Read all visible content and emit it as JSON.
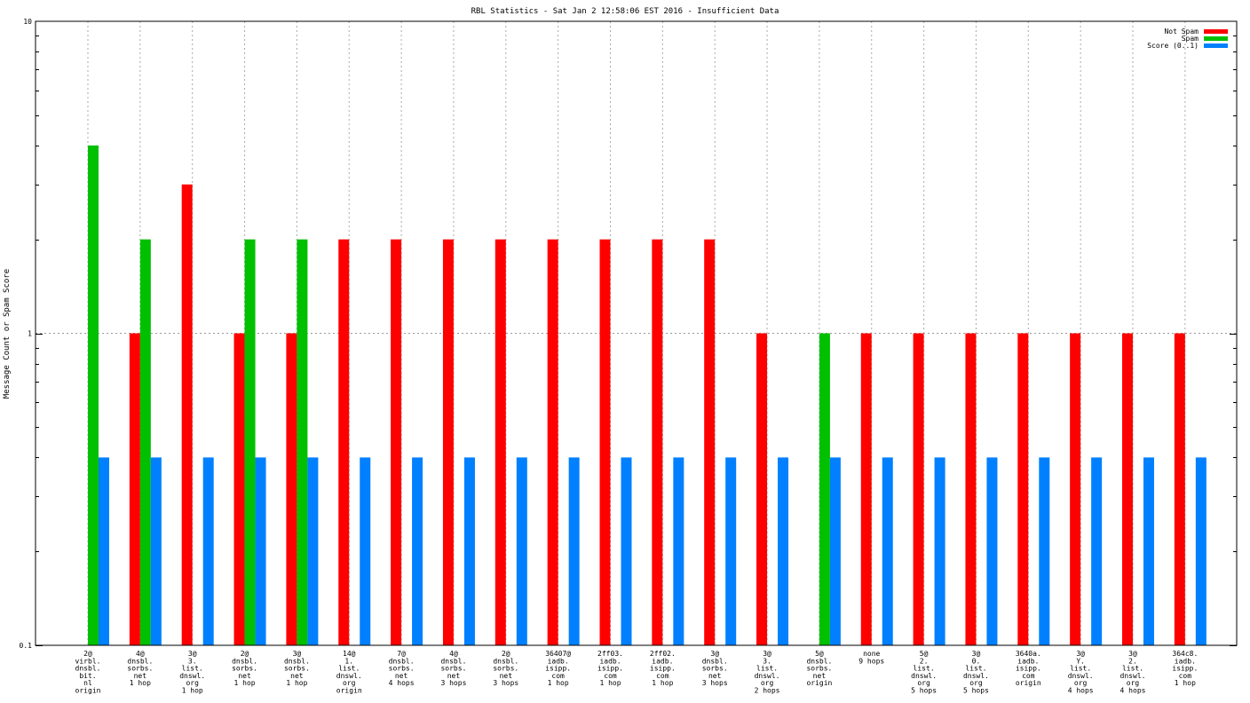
{
  "chart_data": {
    "type": "bar",
    "title": "RBL Statistics - Sat Jan  2 12:58:06 EST 2016 - Insufficient Data",
    "ylabel": "Message Count or Spam Score",
    "xlabel": "",
    "yscale": "log",
    "ylim": [
      0.1,
      10
    ],
    "yticks": [
      "0.1",
      "1",
      "10"
    ],
    "grid": true,
    "legend_position": "top-right",
    "categories": [
      [
        "2@",
        "virbl.",
        "dnsbl.",
        "bit.",
        "nl",
        "origin"
      ],
      [
        "4@",
        "dnsbl.",
        "sorbs.",
        "net",
        "1 hop"
      ],
      [
        "3@",
        "3.",
        "list.",
        "dnswl.",
        "org",
        "1 hop"
      ],
      [
        "2@",
        "dnsbl.",
        "sorbs.",
        "net",
        "1 hop"
      ],
      [
        "3@",
        "dnsbl.",
        "sorbs.",
        "net",
        "1 hop"
      ],
      [
        "14@",
        "1.",
        "list.",
        "dnswl.",
        "org",
        "origin"
      ],
      [
        "7@",
        "dnsbl.",
        "sorbs.",
        "net",
        "4 hops"
      ],
      [
        "4@",
        "dnsbl.",
        "sorbs.",
        "net",
        "3 hops"
      ],
      [
        "2@",
        "dnsbl.",
        "sorbs.",
        "net",
        "3 hops"
      ],
      [
        "36407@",
        "iadb.",
        "isipp.",
        "com",
        "1 hop"
      ],
      [
        "2ff03.",
        "iadb.",
        "isipp.",
        "com",
        "1 hop"
      ],
      [
        "2ff02.",
        "iadb.",
        "isipp.",
        "com",
        "1 hop"
      ],
      [
        "3@",
        "dnsbl.",
        "sorbs.",
        "net",
        "3 hops"
      ],
      [
        "3@",
        "3.",
        "list.",
        "dnswl.",
        "org",
        "2 hops"
      ],
      [
        "5@",
        "dnsbl.",
        "sorbs.",
        "net",
        "origin"
      ],
      [
        "none",
        "9 hops"
      ],
      [
        "5@",
        "2.",
        "list.",
        "dnswl.",
        "org",
        "5 hops"
      ],
      [
        "3@",
        "0.",
        "list.",
        "dnswl.",
        "org",
        "5 hops"
      ],
      [
        "3640a.",
        "iadb.",
        "isipp.",
        "com",
        "origin"
      ],
      [
        "3@",
        "Y.",
        "list.",
        "dnswl.",
        "org",
        "4 hops"
      ],
      [
        "3@",
        "2.",
        "list.",
        "dnswl.",
        "org",
        "4 hops"
      ],
      [
        "364c8.",
        "iadb.",
        "isipp.",
        "com",
        "1 hop"
      ]
    ],
    "series": [
      {
        "name": "Not Spam",
        "color": "#ff0000",
        "values": [
          0,
          1,
          3,
          1,
          1,
          2,
          2,
          2,
          2,
          2,
          2,
          2,
          2,
          1,
          0,
          1,
          1,
          1,
          1,
          1,
          1,
          1
        ]
      },
      {
        "name": "Spam",
        "color": "#00c000",
        "values": [
          4,
          2,
          0,
          2,
          2,
          0,
          0,
          0,
          0,
          0,
          0,
          0,
          0,
          0,
          1,
          0,
          0,
          0,
          0,
          0,
          0,
          0
        ]
      },
      {
        "name": "Score (0..1)",
        "color": "#0080ff",
        "values": [
          0.4,
          0.4,
          0.4,
          0.4,
          0.4,
          0.4,
          0.4,
          0.4,
          0.4,
          0.4,
          0.4,
          0.4,
          0.4,
          0.4,
          0.4,
          0.4,
          0.4,
          0.4,
          0.4,
          0.4,
          0.4,
          0.4
        ]
      }
    ]
  }
}
